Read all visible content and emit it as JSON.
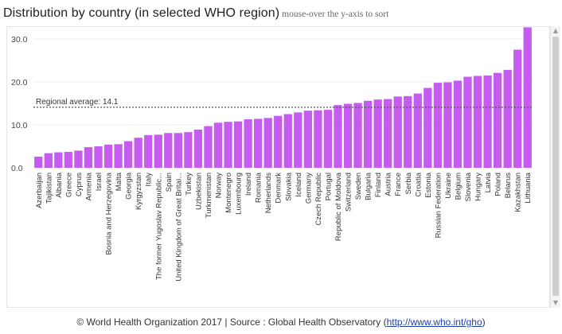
{
  "title": "Distribution by country (in selected WHO region)",
  "hint": "mouse-over the y-axis to sort",
  "scroll": {
    "up_glyph": "▲",
    "down_glyph": "▼"
  },
  "footer": {
    "prefix": "© World Health Organization 2017 | Source : Global Health Observatory (",
    "link": "http://www.who.int/gho",
    "suffix": ")"
  },
  "chart_data": {
    "type": "bar",
    "bar_color": "#c65bf0",
    "ylim": [
      0,
      33
    ],
    "yticks": [
      0,
      10,
      20,
      30
    ],
    "ytick_labels": [
      "0.0",
      "10.0",
      "20.0",
      "30.0"
    ],
    "grid": "horizontal",
    "reference_line": {
      "label": "Regional average: 14.1",
      "value": 14.1
    },
    "categories": [
      "Azerbaijan",
      "Tajikistan",
      "Albania",
      "Greece",
      "Cyprus",
      "Armenia",
      "Israel",
      "Bosnia and Herzegovina",
      "Malta",
      "Georgia",
      "Kyrgyzstan",
      "Italy",
      "The former Yugoslav Republic...",
      "Spain",
      "United Kingdom of Great Britai...",
      "Turkey",
      "Uzbekistan",
      "Turkmenistan",
      "Norway",
      "Montenegro",
      "Luxembourg",
      "Ireland",
      "Romania",
      "Netherlands",
      "Denmark",
      "Slovakia",
      "Iceland",
      "Germany",
      "Czech Republic",
      "Portugal",
      "Republic of Moldova",
      "Switzerland",
      "Sweden",
      "Bulgaria",
      "Finland",
      "Austria",
      "France",
      "Serbia",
      "Croatia",
      "Estonia",
      "Russian Federation",
      "Ukraine",
      "Belgium",
      "Slovenia",
      "Hungary",
      "Latvia",
      "Poland",
      "Belarus",
      "Kazakhstan",
      "Lithuania"
    ],
    "values": [
      2.6,
      3.4,
      3.6,
      3.7,
      4.0,
      4.8,
      5.0,
      5.4,
      5.5,
      6.2,
      7.0,
      7.6,
      7.7,
      8.1,
      8.1,
      8.3,
      8.9,
      9.7,
      10.5,
      10.7,
      10.8,
      11.3,
      11.4,
      11.6,
      12.1,
      12.5,
      12.9,
      13.3,
      13.4,
      13.5,
      14.6,
      14.9,
      15.1,
      15.6,
      15.9,
      16.0,
      16.6,
      16.7,
      17.3,
      18.6,
      19.8,
      19.9,
      20.3,
      21.2,
      21.4,
      21.5,
      22.1,
      22.8,
      27.5,
      32.7
    ]
  }
}
